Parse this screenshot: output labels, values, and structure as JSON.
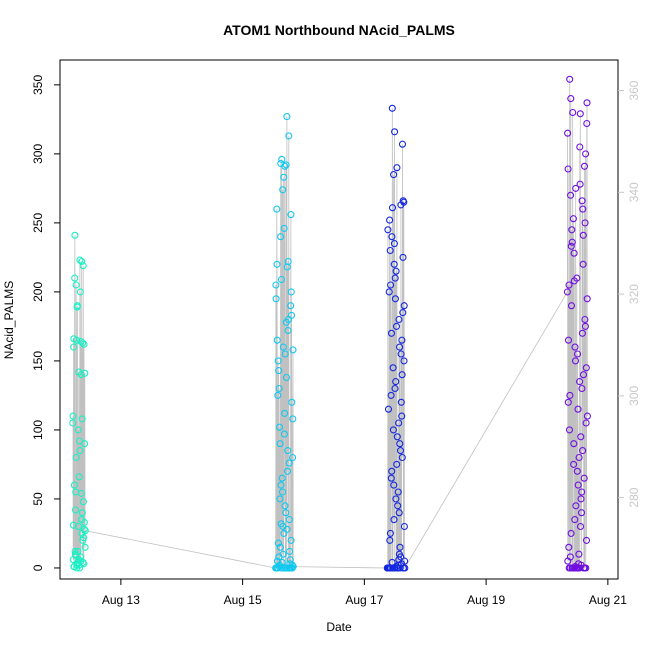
{
  "chart_data": {
    "type": "scatter",
    "title": "ATOM1 Northbound NAcid_PALMS",
    "xlabel": "Date",
    "ylabel": "NAcid_PALMS",
    "x_axis": {
      "type": "date",
      "range": [
        "2016-08-12T00:00",
        "2016-08-21T04:00"
      ],
      "ticks": [
        {
          "date": "2016-08-13",
          "label": "Aug 13"
        },
        {
          "date": "2016-08-15",
          "label": "Aug 15"
        },
        {
          "date": "2016-08-17",
          "label": "Aug 17"
        },
        {
          "date": "2016-08-19",
          "label": "Aug 19"
        },
        {
          "date": "2016-08-21",
          "label": "Aug 21"
        }
      ]
    },
    "y_axis": {
      "range": [
        -8,
        368
      ],
      "ticks": [
        0,
        50,
        100,
        150,
        200,
        250,
        300,
        350
      ]
    },
    "y_axis_right": {
      "range": [
        264,
        366
      ],
      "ticks": [
        280,
        300,
        320,
        340,
        360
      ],
      "color": "#c8c8c8"
    },
    "point_colors": [
      "#00ffcc",
      "#00ccee",
      "#0a28e6",
      "#7a10e8"
    ],
    "line_color": "#c0c0c0",
    "flights": [
      {
        "start": "2016-08-12T05:00",
        "end": "2016-08-12T10:00",
        "color": "#18f0c4",
        "values": [
          166,
          165,
          164,
          163,
          162,
          160,
          141,
          140,
          142,
          110,
          108,
          105,
          100,
          92,
          90,
          85,
          80,
          66,
          60,
          55,
          54,
          48,
          42,
          40,
          35,
          33,
          31,
          30,
          28,
          27,
          25,
          22,
          20,
          15,
          12,
          10,
          8,
          6,
          5,
          4,
          3,
          2,
          1,
          0,
          0,
          1,
          2,
          3,
          4,
          6,
          9,
          12,
          189,
          190,
          200,
          205,
          210,
          219,
          222,
          223,
          241
        ]
      },
      {
        "start": "2016-08-15T13:00",
        "end": "2016-08-15T20:00",
        "color": "#10c8f0",
        "values": [
          327,
          313,
          296,
          293,
          292,
          291,
          283,
          274,
          260,
          256,
          246,
          240,
          222,
          220,
          218,
          209,
          205,
          200,
          195,
          190,
          183,
          180,
          178,
          172,
          165,
          160,
          158,
          155,
          150,
          143,
          138,
          130,
          125,
          120,
          112,
          108,
          102,
          97,
          90,
          85,
          80,
          76,
          70,
          65,
          60,
          55,
          50,
          45,
          40,
          35,
          32,
          30,
          28,
          25,
          20,
          18,
          15,
          12,
          10,
          8,
          6,
          5,
          4,
          3,
          2,
          1,
          0,
          0,
          0,
          0,
          0,
          0,
          0,
          0,
          0,
          0,
          0,
          0,
          0,
          0,
          1,
          2,
          0,
          0
        ]
      },
      {
        "start": "2016-08-17T09:00",
        "end": "2016-08-17T16:00",
        "color": "#1428e0",
        "values": [
          333,
          316,
          307,
          290,
          285,
          266,
          265,
          263,
          261,
          252,
          245,
          240,
          235,
          230,
          225,
          220,
          215,
          210,
          205,
          200,
          195,
          190,
          185,
          180,
          175,
          170,
          165,
          160,
          155,
          150,
          145,
          140,
          135,
          130,
          125,
          120,
          115,
          110,
          105,
          100,
          95,
          90,
          85,
          80,
          75,
          70,
          65,
          60,
          55,
          50,
          45,
          40,
          35,
          30,
          25,
          20,
          15,
          10,
          8,
          6,
          5,
          4,
          3,
          2,
          1,
          0,
          0,
          0,
          0,
          0,
          0,
          0,
          0,
          0,
          0,
          0,
          0,
          0,
          0,
          0,
          0,
          0,
          0,
          0,
          0
        ]
      },
      {
        "start": "2016-08-20T08:00",
        "end": "2016-08-20T16:00",
        "color": "#7010e0",
        "values": [
          354,
          340,
          337,
          330,
          329,
          322,
          315,
          305,
          300,
          291,
          289,
          278,
          275,
          270,
          266,
          260,
          253,
          250,
          245,
          241,
          236,
          233,
          228,
          220,
          210,
          208,
          205,
          200,
          195,
          190,
          180,
          175,
          170,
          165,
          160,
          155,
          150,
          145,
          140,
          135,
          130,
          125,
          120,
          115,
          110,
          105,
          100,
          95,
          90,
          85,
          80,
          75,
          70,
          65,
          60,
          55,
          50,
          45,
          40,
          35,
          30,
          25,
          20,
          15,
          10,
          8,
          5,
          3,
          2,
          1,
          0,
          0,
          0,
          0,
          0,
          0,
          0,
          0,
          0,
          0,
          0,
          0,
          0,
          0,
          0,
          0,
          0,
          0
        ]
      }
    ]
  }
}
